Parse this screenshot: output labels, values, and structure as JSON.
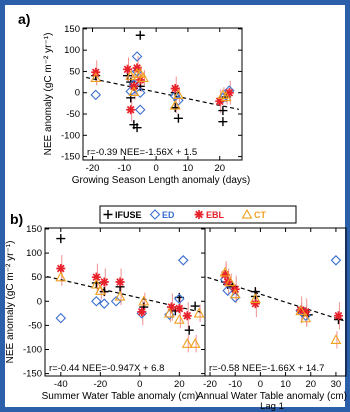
{
  "colors": {
    "background_frame": "#2b5faa",
    "IFUSE": "#000000",
    "ED": "#3a6fd0",
    "EBL": "#e8202a",
    "CT": "#f0a020",
    "errorbar": "#f09090"
  },
  "chart_data": [
    {
      "panel": "a)",
      "type": "scatter",
      "xlabel": "Growing Season Length anomaly (days)",
      "ylabel": "NEE anomaly (gC m⁻² yr⁻¹)",
      "xlim": [
        -23,
        27
      ],
      "ylim": [
        -158,
        152
      ],
      "xticks": [
        -20,
        -10,
        0,
        10,
        20
      ],
      "yticks": [
        -150,
        -100,
        -50,
        0,
        50,
        100,
        150
      ],
      "annotation": "r=-0.39 NEE=-1.56X + 1.5",
      "fit": {
        "slope": -1.56,
        "intercept": 1.5
      },
      "series": [
        {
          "name": "IFUSE",
          "marker": "plus",
          "points": [
            [
              -19,
              40
            ],
            [
              -9,
              40
            ],
            [
              -8,
              25
            ],
            [
              -8,
              -12
            ],
            [
              -7,
              -75
            ],
            [
              -6,
              -82
            ],
            [
              -5,
              135
            ],
            [
              -5,
              15
            ],
            [
              6,
              0
            ],
            [
              6,
              -35
            ],
            [
              7,
              -60
            ],
            [
              21,
              -42
            ],
            [
              21,
              -68
            ],
            [
              22,
              -10
            ]
          ]
        },
        {
          "name": "ED",
          "marker": "diamond",
          "points": [
            [
              -19,
              -5
            ],
            [
              -8,
              3
            ],
            [
              -7,
              20
            ],
            [
              -6,
              85
            ],
            [
              -6,
              50
            ],
            [
              -5,
              0
            ],
            [
              -5,
              -40
            ],
            [
              6,
              -8
            ],
            [
              7,
              -18
            ],
            [
              21,
              -12
            ],
            [
              23,
              5
            ]
          ]
        },
        {
          "name": "EBL",
          "marker": "asterisk",
          "points": [
            [
              -19,
              48
            ],
            [
              -9,
              55
            ],
            [
              -8,
              -40
            ],
            [
              -7,
              15
            ],
            [
              -6,
              58
            ],
            [
              -5,
              30
            ],
            [
              6,
              10
            ],
            [
              20,
              -20
            ],
            [
              23,
              0
            ]
          ]
        },
        {
          "name": "CT",
          "marker": "triangle",
          "points": [
            [
              -19,
              35
            ],
            [
              -8,
              40
            ],
            [
              -7,
              2
            ],
            [
              -6,
              45
            ],
            [
              -5,
              45
            ],
            [
              -4,
              35
            ],
            [
              6,
              -30
            ],
            [
              7,
              -5
            ],
            [
              21,
              -5
            ],
            [
              22,
              -10
            ]
          ]
        }
      ]
    },
    {
      "panel": "b)",
      "type": "scatter",
      "xlabel": "Summer Water Table anomaly (cm)",
      "ylabel": "NEE anomaly (gC m⁻² yr⁻¹)",
      "xlim": [
        -48,
        33
      ],
      "ylim": [
        -155,
        152
      ],
      "xticks": [
        -40,
        -20,
        0,
        20
      ],
      "yticks": [
        -150,
        -100,
        -50,
        0,
        50,
        100,
        150
      ],
      "annotation": "r=-0.44 NEE=-0.947X + 6.8",
      "fit": {
        "slope": -0.947,
        "intercept": 6.8
      },
      "series": [
        {
          "name": "IFUSE",
          "marker": "plus",
          "points": [
            [
              -40,
              130
            ],
            [
              -22,
              38
            ],
            [
              -18,
              20
            ],
            [
              -10,
              30
            ],
            [
              2,
              -12
            ],
            [
              18,
              -20
            ],
            [
              20,
              8
            ],
            [
              25,
              -60
            ],
            [
              28,
              -10
            ]
          ]
        },
        {
          "name": "ED",
          "marker": "diamond",
          "points": [
            [
              -40,
              -35
            ],
            [
              -22,
              0
            ],
            [
              -18,
              -5
            ],
            [
              -12,
              0
            ],
            [
              1,
              -25
            ],
            [
              15,
              -28
            ],
            [
              20,
              5
            ],
            [
              22,
              85
            ]
          ]
        },
        {
          "name": "EBL",
          "marker": "asterisk",
          "points": [
            [
              -40,
              68
            ],
            [
              -22,
              50
            ],
            [
              -18,
              40
            ],
            [
              -10,
              40
            ],
            [
              1,
              -22
            ],
            [
              16,
              -12
            ],
            [
              20,
              -15
            ],
            [
              24,
              -30
            ]
          ]
        },
        {
          "name": "CT",
          "marker": "triangle",
          "points": [
            [
              -40,
              50
            ],
            [
              -22,
              35
            ],
            [
              -20,
              22
            ],
            [
              -10,
              10
            ],
            [
              2,
              0
            ],
            [
              15,
              -25
            ],
            [
              20,
              -38
            ],
            [
              24,
              -88
            ],
            [
              28,
              -88
            ],
            [
              30,
              -25
            ]
          ]
        }
      ]
    },
    {
      "panel": "b) right",
      "type": "scatter",
      "xlabel": "Annual Water Table anomaly (cm)",
      "xlabel2": "Lag 1",
      "xlim": [
        -22,
        34
      ],
      "ylim": [
        -155,
        152
      ],
      "xticks": [
        -20,
        -10,
        0,
        10,
        20,
        30
      ],
      "annotation": "r=-0.58 NEE=-1.66X + 14.7",
      "fit": {
        "slope": -1.66,
        "intercept": 14.7
      },
      "series": [
        {
          "name": "IFUSE",
          "marker": "plus",
          "points": [
            [
              -14,
              55
            ],
            [
              -13,
              35
            ],
            [
              -11,
              30
            ],
            [
              -2,
              20
            ],
            [
              -2,
              10
            ],
            [
              17,
              -22
            ],
            [
              19,
              -28
            ],
            [
              31,
              -38
            ]
          ]
        },
        {
          "name": "ED",
          "marker": "diamond",
          "points": [
            [
              -14,
              45
            ],
            [
              -13,
              22
            ],
            [
              -10,
              8
            ],
            [
              16,
              -20
            ],
            [
              18,
              -30
            ],
            [
              30,
              85
            ]
          ]
        },
        {
          "name": "EBL",
          "marker": "asterisk",
          "points": [
            [
              -14,
              55
            ],
            [
              -13,
              40
            ],
            [
              -10,
              25
            ],
            [
              -2,
              -5
            ],
            [
              16,
              -18
            ],
            [
              18,
              -22
            ],
            [
              31,
              -30
            ]
          ]
        },
        {
          "name": "CT",
          "marker": "triangle",
          "points": [
            [
              -14,
              60
            ],
            [
              -12,
              40
            ],
            [
              -10,
              15
            ],
            [
              -2,
              5
            ],
            [
              16,
              -20
            ],
            [
              18,
              -35
            ],
            [
              30,
              -80
            ]
          ]
        }
      ]
    }
  ],
  "legend": [
    {
      "label": "IFUSE",
      "marker": "plus",
      "color": "#000000"
    },
    {
      "label": "ED",
      "marker": "diamond",
      "color": "#3a6fd0"
    },
    {
      "label": "EBL",
      "marker": "asterisk",
      "color": "#e8202a"
    },
    {
      "label": "CT",
      "marker": "triangle",
      "color": "#f0a020"
    }
  ]
}
